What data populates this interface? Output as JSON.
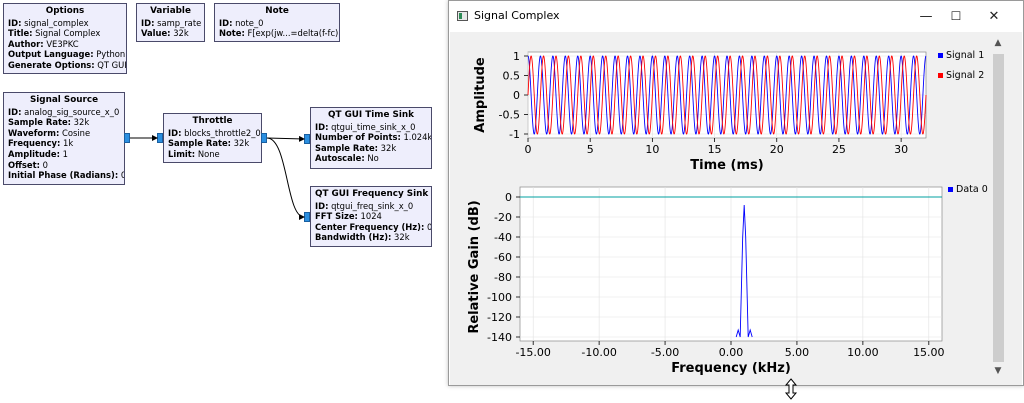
{
  "flowgraph": {
    "options": {
      "title": "Options",
      "rows": [
        {
          "k": "ID:",
          "v": "signal_complex"
        },
        {
          "k": "Title:",
          "v": "Signal Complex"
        },
        {
          "k": "Author:",
          "v": "VE3PKC"
        },
        {
          "k": "Output Language:",
          "v": "Python"
        },
        {
          "k": "Generate Options:",
          "v": "QT GUI"
        }
      ]
    },
    "variable": {
      "title": "Variable",
      "rows": [
        {
          "k": "ID:",
          "v": "samp_rate"
        },
        {
          "k": "Value:",
          "v": "32k"
        }
      ]
    },
    "note": {
      "title": "Note",
      "rows": [
        {
          "k": "ID:",
          "v": "note_0"
        },
        {
          "k": "Note:",
          "v": "F[exp(jw...=delta(f-fc)"
        }
      ]
    },
    "signal_source": {
      "title": "Signal Source",
      "rows": [
        {
          "k": "ID:",
          "v": "analog_sig_source_x_0"
        },
        {
          "k": "Sample Rate:",
          "v": "32k"
        },
        {
          "k": "Waveform:",
          "v": "Cosine"
        },
        {
          "k": "Frequency:",
          "v": "1k"
        },
        {
          "k": "Amplitude:",
          "v": "1"
        },
        {
          "k": "Offset:",
          "v": "0"
        },
        {
          "k": "Initial Phase (Radians):",
          "v": "0"
        }
      ]
    },
    "throttle": {
      "title": "Throttle",
      "rows": [
        {
          "k": "ID:",
          "v": "blocks_throttle2_0"
        },
        {
          "k": "Sample Rate:",
          "v": "32k"
        },
        {
          "k": "Limit:",
          "v": "None"
        }
      ]
    },
    "time_sink": {
      "title": "QT GUI Time Sink",
      "rows": [
        {
          "k": "ID:",
          "v": "qtgui_time_sink_x_0"
        },
        {
          "k": "Number of Points:",
          "v": "1.024k"
        },
        {
          "k": "Sample Rate:",
          "v": "32k"
        },
        {
          "k": "Autoscale:",
          "v": "No"
        }
      ]
    },
    "freq_sink": {
      "title": "QT GUI Frequency Sink",
      "rows": [
        {
          "k": "ID:",
          "v": "qtgui_freq_sink_x_0"
        },
        {
          "k": "FFT Size:",
          "v": "1024"
        },
        {
          "k": "Center Frequency (Hz):",
          "v": "0"
        },
        {
          "k": "Bandwidth (Hz):",
          "v": "32k"
        }
      ]
    }
  },
  "window": {
    "title": "Signal Complex",
    "minimize": "—",
    "maximize": "☐",
    "close": "✕"
  },
  "colors": {
    "block_fill": "#eeeefc",
    "port": "#2b8fe0",
    "signal1": "#0000ff",
    "signal2": "#ff0000",
    "data0": "#0000ff",
    "spectrum_trace": "#00a0a0"
  },
  "chart_data": [
    {
      "type": "line",
      "title": "",
      "xlabel": "Time (ms)",
      "ylabel": "Amplitude",
      "xlim": [
        0,
        32
      ],
      "ylim": [
        -1,
        1
      ],
      "xticks": [
        "0",
        "5",
        "10",
        "15",
        "20",
        "25",
        "30"
      ],
      "yticks": [
        "1",
        "0.5",
        "0",
        "-0.5",
        "-1"
      ],
      "grid": true,
      "legend_position": "right",
      "signal_frequency_khz": 1,
      "series": [
        {
          "name": "Signal 1",
          "color": "#0000ff",
          "function": "cos(2π·1kHz·t)"
        },
        {
          "name": "Signal 2",
          "color": "#ff0000",
          "function": "sin(2π·1kHz·t)"
        }
      ]
    },
    {
      "type": "line",
      "title": "",
      "xlabel": "Frequency (kHz)",
      "ylabel": "Relative Gain (dB)",
      "xlim": [
        -16,
        16
      ],
      "ylim": [
        -140,
        0
      ],
      "xticks": [
        "-15.00",
        "-10.00",
        "-5.00",
        "0.00",
        "5.00",
        "10.00",
        "15.00"
      ],
      "yticks": [
        "0",
        "-20",
        "-40",
        "-60",
        "-80",
        "-100",
        "-120",
        "-140"
      ],
      "grid": true,
      "legend_position": "right",
      "series": [
        {
          "name": "Data 0",
          "color": "#0000ff",
          "peak_frequency_khz": 1,
          "peak_db": -8,
          "noise_floor_db": -140
        },
        {
          "name": "",
          "color": "#00a0a0",
          "level_db": 0
        }
      ]
    }
  ]
}
